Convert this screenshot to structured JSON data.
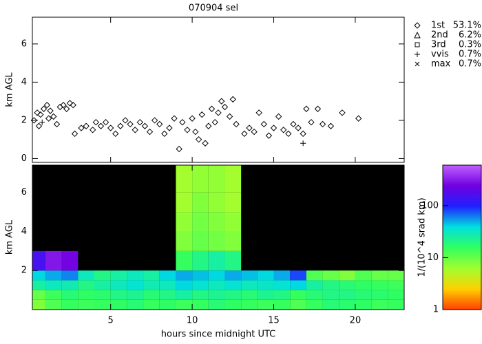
{
  "chart_data": [
    {
      "type": "scatter",
      "title": "070904 sel",
      "ylabel": "km AGL",
      "xlim": [
        0.2,
        23.0
      ],
      "xticks": [
        5,
        10,
        15,
        20
      ],
      "ylim": [
        -0.2,
        7.4
      ],
      "yticks": [
        0,
        2,
        4,
        6
      ],
      "series": [
        {
          "name": "1st",
          "share": "53.1%",
          "symbol": "diamond",
          "color": "#000000",
          "x": [
            0.3,
            0.5,
            0.7,
            0.9,
            1.1,
            1.3,
            1.5,
            1.7,
            1.9,
            2.1,
            2.3,
            2.5,
            2.7,
            1.2,
            0.6,
            2.8,
            3.2,
            3.5,
            3.9,
            4.1,
            4.4,
            4.7,
            5.0,
            5.3,
            5.6,
            5.9,
            6.2,
            6.5,
            6.8,
            7.1,
            7.4,
            7.7,
            8.0,
            8.3,
            8.6,
            8.9,
            9.2,
            9.4,
            9.7,
            10.0,
            10.2,
            10.4,
            10.6,
            10.8,
            11.0,
            11.2,
            11.4,
            11.6,
            11.8,
            12.0,
            12.3,
            12.5,
            12.7,
            13.2,
            13.5,
            13.8,
            14.1,
            14.4,
            14.7,
            15.0,
            15.3,
            15.6,
            15.9,
            16.2,
            16.5,
            16.8,
            17.0,
            17.3,
            17.7,
            18.0,
            18.5,
            19.2,
            20.2
          ],
          "y": [
            2.0,
            2.4,
            2.3,
            2.6,
            2.8,
            2.5,
            2.2,
            1.8,
            2.7,
            2.8,
            2.6,
            2.9,
            2.8,
            2.1,
            1.7,
            1.3,
            1.6,
            1.7,
            1.5,
            1.9,
            1.7,
            1.9,
            1.6,
            1.3,
            1.7,
            2.0,
            1.8,
            1.5,
            1.9,
            1.7,
            1.4,
            2.0,
            1.8,
            1.3,
            1.6,
            2.1,
            0.5,
            1.9,
            1.5,
            2.1,
            1.4,
            1.0,
            2.3,
            0.8,
            1.7,
            2.6,
            1.9,
            2.4,
            3.0,
            2.7,
            2.2,
            3.1,
            1.8,
            1.3,
            1.6,
            1.4,
            2.4,
            1.8,
            1.2,
            1.6,
            2.2,
            1.5,
            1.3,
            1.8,
            1.6,
            1.3,
            2.6,
            1.9,
            2.6,
            1.8,
            1.7,
            2.4,
            2.1
          ]
        },
        {
          "name": "2nd",
          "share": "6.2%",
          "symbol": "triangle",
          "color": "#000000",
          "x": [],
          "y": []
        },
        {
          "name": "3rd",
          "share": "0.3%",
          "symbol": "square",
          "color": "#000000",
          "x": [],
          "y": []
        },
        {
          "name": "vvis",
          "share": "0.7%",
          "symbol": "plus",
          "color": "#000000",
          "x": [
            0.8,
            16.8
          ],
          "y": [
            1.9,
            0.8
          ]
        },
        {
          "name": "max",
          "share": "0.7%",
          "symbol": "cross",
          "color": "#000000",
          "x": [],
          "y": []
        }
      ]
    },
    {
      "type": "heatmap",
      "ylabel": "km AGL",
      "xlabel": "hours since midnight UTC",
      "xlim": [
        0.2,
        23.0
      ],
      "xticks": [
        5,
        10,
        15,
        20
      ],
      "ylim": [
        0,
        7.4
      ],
      "yticks": [
        2,
        4,
        6
      ],
      "x_bins": [
        0.2,
        1,
        2,
        3,
        4,
        5,
        6,
        7,
        8,
        9,
        10,
        11,
        12,
        13,
        14,
        15,
        16,
        17,
        18,
        19,
        20,
        21,
        22,
        23
      ],
      "y_bins": [
        0,
        0.5,
        1,
        1.5,
        2,
        3,
        4,
        5,
        6,
        7.4
      ],
      "values": [
        [
          8,
          12,
          15,
          14,
          15,
          16,
          18,
          15,
          16,
          14,
          15,
          18,
          16,
          15,
          14,
          15,
          12,
          15,
          18,
          17,
          16,
          14,
          15
        ],
        [
          10,
          14,
          18,
          16,
          17,
          20,
          22,
          18,
          20,
          25,
          20,
          22,
          20,
          18,
          22,
          20,
          15,
          18,
          20,
          20,
          18,
          17,
          16
        ],
        [
          25,
          30,
          28,
          20,
          25,
          30,
          35,
          28,
          30,
          40,
          35,
          30,
          35,
          30,
          32,
          35,
          40,
          25,
          20,
          18,
          16,
          15,
          14
        ],
        [
          40,
          50,
          60,
          30,
          20,
          25,
          30,
          25,
          40,
          50,
          45,
          40,
          50,
          45,
          40,
          50,
          80,
          12,
          10,
          8,
          12,
          10,
          10
        ],
        [
          150,
          300,
          250,
          null,
          null,
          null,
          null,
          null,
          null,
          15,
          20,
          25,
          20,
          null,
          null,
          null,
          null,
          null,
          null,
          null,
          null,
          null,
          null
        ],
        [
          null,
          null,
          null,
          null,
          null,
          null,
          null,
          null,
          null,
          8,
          10,
          9,
          8,
          null,
          null,
          null,
          null,
          null,
          null,
          null,
          null,
          null,
          null
        ],
        [
          null,
          null,
          null,
          null,
          null,
          null,
          null,
          null,
          null,
          7,
          9,
          8,
          7,
          null,
          null,
          null,
          null,
          null,
          null,
          null,
          null,
          null,
          null
        ],
        [
          null,
          null,
          null,
          null,
          null,
          null,
          null,
          null,
          null,
          6,
          8,
          7,
          6,
          null,
          null,
          null,
          null,
          null,
          null,
          null,
          null,
          null,
          null
        ],
        [
          null,
          null,
          null,
          null,
          null,
          null,
          null,
          null,
          null,
          6,
          7,
          7,
          6,
          null,
          null,
          null,
          null,
          null,
          null,
          null,
          null,
          null,
          null
        ]
      ],
      "background": "#000000",
      "colorbar": {
        "label": "1/(10^4 srad km)",
        "clim": [
          1,
          600
        ],
        "ticks": [
          1,
          10,
          100
        ],
        "log": true,
        "colormap": [
          "#ff4000",
          "#ffd000",
          "#a0ff30",
          "#30ff60",
          "#00e0e0",
          "#2020ff",
          "#7000e0",
          "#c060ff"
        ]
      }
    }
  ]
}
